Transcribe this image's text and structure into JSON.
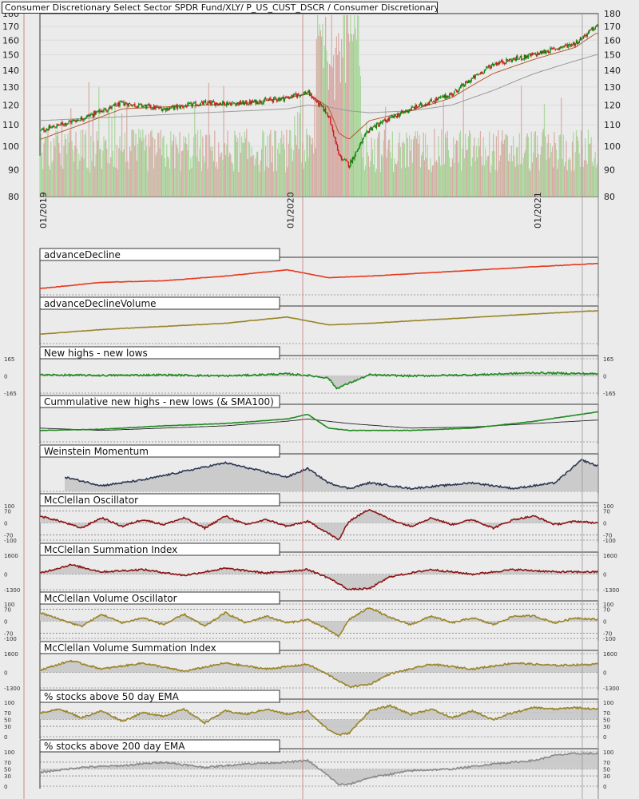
{
  "header": {
    "title": "Consumer Discretionary Select Sector SPDR Fund/XLY/ P_US_CUST_DSCR / Consumer Discretionary"
  },
  "colors": {
    "background": "#ebebeb",
    "frame": "#333333",
    "price_up": "#0a8a0a",
    "price_down": "#c81e1e",
    "volume_up": "#a9d79c",
    "volume_down": "#d7aba5",
    "sma50": "#b5592f",
    "sma200": "#9a9a9a",
    "advance_decline": "#e8391e",
    "olive": "#9a8427",
    "green": "#1f8a1f",
    "navy": "#2d3752",
    "maroon": "#8c1414",
    "gray_line": "#8a8a8a",
    "shade": "#c8c8c8"
  },
  "chart_data": [
    {
      "type": "line",
      "title": "Consumer Discretionary Select Sector SPDR Fund/XLY/ P_US_CUST_DSCR / Consumer Discretionary",
      "x_tick_labels": [
        "01/2019",
        "01/2020",
        "01/2021"
      ],
      "y_tick_labels": [
        "80",
        "90",
        "100",
        "110",
        "120",
        "130",
        "140",
        "150",
        "160",
        "170",
        "180"
      ],
      "ylim": [
        80,
        180
      ],
      "y_scale": "log",
      "series_shown": [
        "price candles",
        "moving average (brown)",
        "moving average (gray)",
        "volume bars"
      ],
      "x_months": [
        0,
        2,
        4,
        6,
        8,
        10,
        12,
        13,
        14,
        14.5,
        15,
        16,
        18,
        20,
        22,
        24,
        26,
        27
      ],
      "price": [
        107,
        113,
        121,
        118,
        121,
        121,
        124,
        127,
        115,
        96,
        92,
        108,
        118,
        126,
        144,
        150,
        158,
        170
      ],
      "sma50": [
        103,
        110,
        118,
        119,
        120,
        121,
        124,
        126,
        119,
        106,
        103,
        112,
        117,
        124,
        138,
        147,
        155,
        165
      ],
      "sma200": [
        112,
        113,
        114,
        115,
        116,
        117,
        118,
        120,
        119,
        118,
        117,
        116,
        117,
        120,
        128,
        138,
        146,
        150
      ]
    },
    {
      "type": "line",
      "title": "advanceDecline",
      "x_months": [
        0,
        3,
        6,
        9,
        12,
        14,
        16,
        20,
        24,
        27
      ],
      "values": [
        -60,
        -20,
        -10,
        20,
        60,
        10,
        20,
        50,
        80,
        100
      ],
      "ylim": [
        -100,
        120
      ]
    },
    {
      "type": "line",
      "title": "advanceDeclineVolume",
      "x_months": [
        0,
        3,
        6,
        9,
        12,
        14,
        16,
        20,
        24,
        27
      ],
      "values": [
        -40,
        -10,
        10,
        30,
        70,
        20,
        30,
        60,
        90,
        110
      ],
      "ylim": [
        -100,
        120
      ]
    },
    {
      "type": "area",
      "title": "New highs - new lows",
      "y_tick_labels": [
        "165",
        "0",
        "-165"
      ],
      "ylim": [
        -165,
        165
      ],
      "x_months": [
        0,
        3,
        6,
        9,
        12,
        13,
        14,
        14.4,
        15,
        16,
        18,
        21,
        24,
        27
      ],
      "values": [
        10,
        5,
        10,
        0,
        20,
        5,
        -20,
        -120,
        -70,
        10,
        0,
        10,
        30,
        20
      ]
    },
    {
      "type": "line",
      "title": "Cummulative new highs - new lows (& SMA100)",
      "x_months": [
        0,
        3,
        6,
        9,
        12,
        13,
        14,
        15,
        18,
        21,
        24,
        27
      ],
      "values": [
        -50,
        -45,
        -30,
        -20,
        0,
        20,
        -40,
        -50,
        -50,
        -40,
        -10,
        30
      ],
      "sma100": [
        -40,
        -50,
        -40,
        -30,
        -10,
        0,
        -10,
        -20,
        -40,
        -35,
        -20,
        -5
      ],
      "ylim": [
        -100,
        50
      ]
    },
    {
      "type": "area",
      "title": "Weinstein Momentum",
      "x_months": [
        1.2,
        3,
        5,
        7,
        9,
        12,
        13,
        14,
        15,
        16,
        18,
        21,
        23,
        25,
        26.3,
        27
      ],
      "values": [
        40,
        10,
        30,
        60,
        90,
        40,
        70,
        20,
        0,
        20,
        0,
        20,
        0,
        20,
        100,
        80
      ],
      "ylim": [
        -10,
        110
      ]
    },
    {
      "type": "area",
      "title": "McClellan Oscillator",
      "y_tick_labels": [
        "100",
        "70",
        "0",
        "-70",
        "-100"
      ],
      "ylim": [
        -100,
        100
      ],
      "x_months": [
        0,
        1,
        2,
        3,
        4,
        5,
        6,
        7,
        8,
        9,
        10,
        11,
        12,
        13,
        14,
        14.5,
        15,
        16,
        17,
        18,
        19,
        20,
        21,
        22,
        23,
        24,
        25,
        26,
        27
      ],
      "values": [
        40,
        10,
        -30,
        30,
        -20,
        20,
        -10,
        30,
        -30,
        40,
        -10,
        20,
        -20,
        10,
        -60,
        -100,
        10,
        80,
        20,
        -20,
        30,
        -10,
        20,
        -30,
        20,
        40,
        -10,
        10,
        0
      ]
    },
    {
      "type": "area",
      "title": "McClellan Summation Index",
      "y_tick_labels": [
        "1600",
        "0",
        "-1300"
      ],
      "ylim": [
        -1300,
        1600
      ],
      "x_months": [
        0,
        1.5,
        3,
        5,
        7,
        9,
        11,
        13,
        14,
        15,
        16,
        17,
        19,
        21,
        23,
        25,
        27
      ],
      "values": [
        100,
        800,
        200,
        400,
        -100,
        500,
        100,
        400,
        -300,
        -1300,
        -1200,
        -200,
        400,
        0,
        400,
        200,
        200
      ]
    },
    {
      "type": "area",
      "title": "McClellan Volume Oscillator",
      "y_tick_labels": [
        "100",
        "70",
        "0",
        "-70",
        "-100"
      ],
      "ylim": [
        -100,
        100
      ],
      "x_months": [
        0,
        1,
        2,
        3,
        4,
        5,
        6,
        7,
        8,
        9,
        10,
        11,
        12,
        13,
        14,
        14.5,
        15,
        16,
        17,
        18,
        19,
        20,
        21,
        22,
        23,
        24,
        25,
        26,
        27
      ],
      "values": [
        50,
        10,
        -30,
        40,
        -10,
        20,
        -20,
        40,
        -30,
        50,
        -10,
        30,
        -10,
        10,
        -50,
        -90,
        10,
        80,
        20,
        -20,
        30,
        -10,
        20,
        -20,
        30,
        30,
        -10,
        20,
        10
      ]
    },
    {
      "type": "area",
      "title": "McClellan Volume Summation Index",
      "y_tick_labels": [
        "1600",
        "0",
        "-1300"
      ],
      "ylim": [
        -1300,
        1600
      ],
      "x_months": [
        0,
        1.5,
        3,
        5,
        7,
        9,
        11,
        13,
        14,
        15,
        16,
        17,
        19,
        21,
        23,
        25,
        27
      ],
      "values": [
        200,
        1000,
        300,
        800,
        100,
        800,
        300,
        700,
        -200,
        -1200,
        -1000,
        -100,
        700,
        300,
        800,
        600,
        700
      ]
    },
    {
      "type": "area",
      "title": "% stocks above 50 day EMA",
      "y_tick_labels": [
        "100",
        "70",
        "50",
        "30",
        "0"
      ],
      "ylim": [
        0,
        100
      ],
      "x_months": [
        0,
        1,
        2,
        3,
        4,
        5,
        6,
        7,
        8,
        9,
        10,
        11,
        12,
        13,
        14,
        14.5,
        15,
        16,
        17,
        18,
        19,
        20,
        21,
        22,
        23,
        24,
        25,
        26,
        27
      ],
      "values": [
        70,
        80,
        55,
        75,
        45,
        70,
        60,
        80,
        40,
        75,
        65,
        80,
        65,
        75,
        20,
        5,
        10,
        75,
        90,
        65,
        80,
        55,
        75,
        50,
        70,
        85,
        80,
        85,
        80
      ]
    },
    {
      "type": "area",
      "title": "% stocks above 200 day EMA",
      "y_tick_labels": [
        "100",
        "70",
        "50",
        "30",
        "0"
      ],
      "ylim": [
        0,
        100
      ],
      "x_months": [
        0,
        2,
        4,
        6,
        8,
        10,
        12,
        13,
        14,
        14.5,
        15,
        16,
        18,
        20,
        22,
        24,
        25,
        26,
        27
      ],
      "values": [
        40,
        55,
        60,
        70,
        55,
        65,
        70,
        75,
        30,
        5,
        5,
        25,
        45,
        50,
        65,
        75,
        90,
        95,
        95
      ]
    }
  ]
}
